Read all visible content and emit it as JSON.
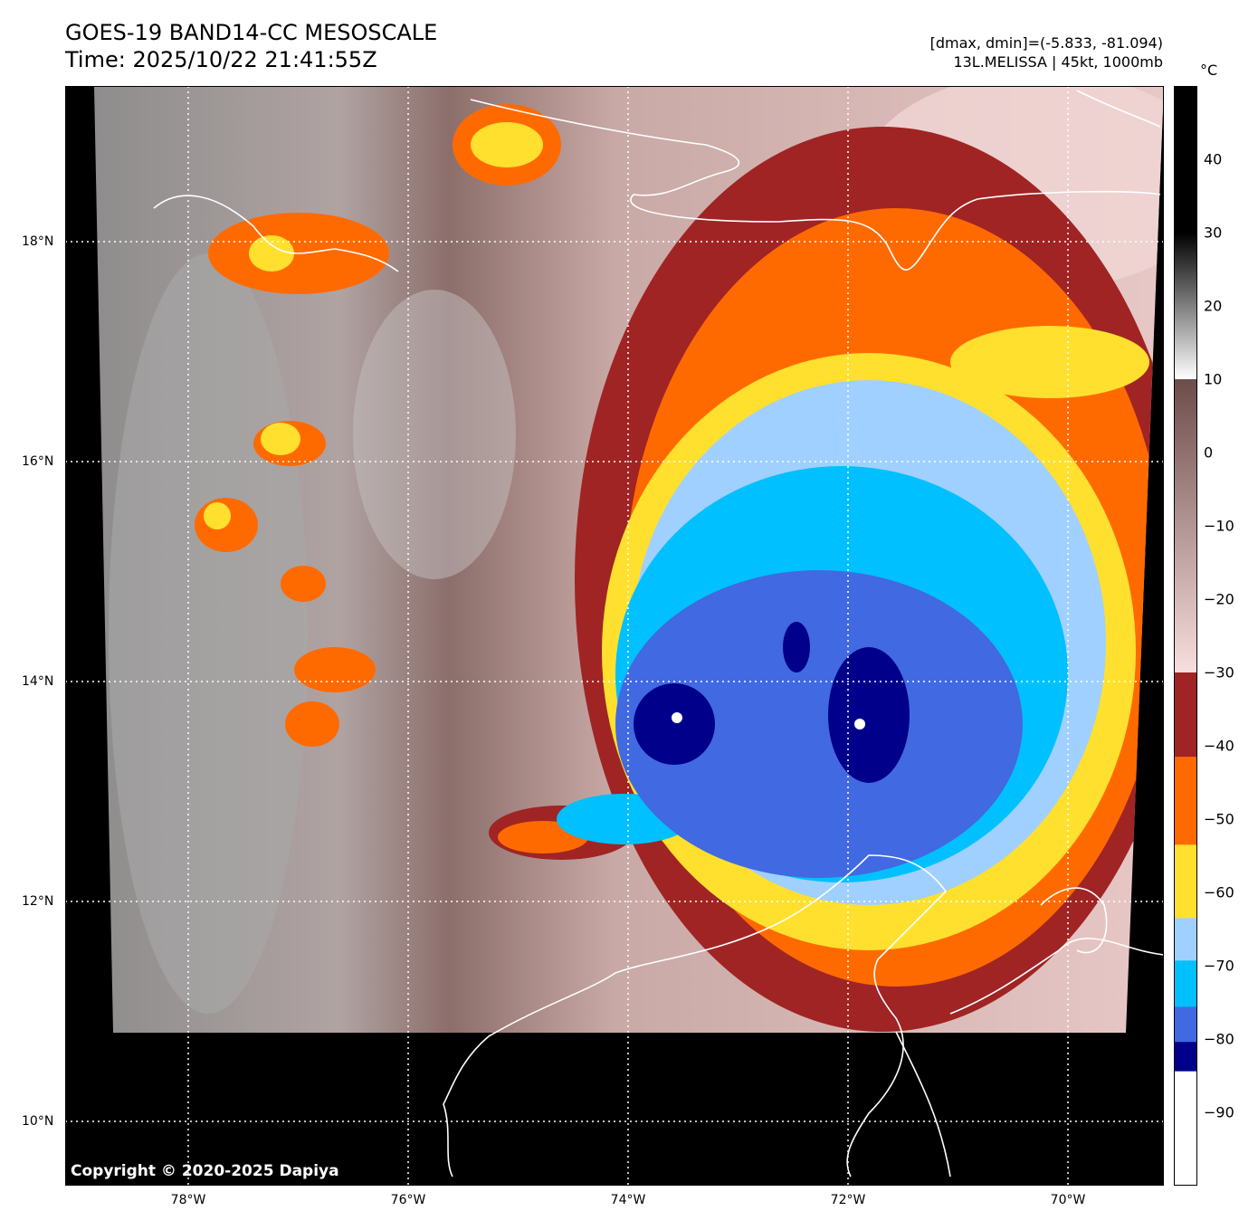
{
  "header": {
    "title": "GOES-19 BAND14-CC MESOSCALE",
    "time": "Time: 2025/10/22 21:41:55Z",
    "stats": "[dmax, dmin]=(-5.833, -81.094)",
    "storm": "13L.MELISSA | 45kt, 1000mb"
  },
  "axes": {
    "lat_ticks": [
      "18°N",
      "16°N",
      "14°N",
      "12°N",
      "10°N"
    ],
    "lon_ticks": [
      "78°W",
      "76°W",
      "74°W",
      "72°W",
      "70°W"
    ]
  },
  "colorbar": {
    "unit": "°C",
    "range": [
      -100,
      50
    ],
    "tick_labels": [
      "40",
      "30",
      "20",
      "10",
      "0",
      "−10",
      "−20",
      "−30",
      "−40",
      "−50",
      "−60",
      "−70",
      "−80",
      "−90"
    ],
    "tick_values": [
      40,
      30,
      20,
      10,
      0,
      -10,
      -20,
      -30,
      -40,
      -50,
      -60,
      -70,
      -80,
      -90
    ],
    "segments": [
      {
        "from": 50,
        "to": 30,
        "c1": "#000000",
        "c2": "#000000"
      },
      {
        "from": 30,
        "to": 10,
        "c1": "#000000",
        "c2": "#ffffff"
      },
      {
        "from": 10,
        "to": -30,
        "c1": "#6b4d4a",
        "c2": "#f8dede"
      },
      {
        "from": -30,
        "to": -41.5,
        "c1": "#a02424",
        "c2": "#a02424"
      },
      {
        "from": -41.5,
        "to": -53.5,
        "c1": "#ff6a00",
        "c2": "#ff6a00"
      },
      {
        "from": -53.5,
        "to": -63.5,
        "c1": "#ffe02e",
        "c2": "#ffe02e"
      },
      {
        "from": -63.5,
        "to": -69.3,
        "c1": "#a0d0ff",
        "c2": "#a0d0ff"
      },
      {
        "from": -69.3,
        "to": -75.6,
        "c1": "#00c0ff",
        "c2": "#00c0ff"
      },
      {
        "from": -75.6,
        "to": -80.4,
        "c1": "#4169e1",
        "c2": "#4169e1"
      },
      {
        "from": -80.4,
        "to": -84.4,
        "c1": "#00008b",
        "c2": "#00008b"
      },
      {
        "from": -84.4,
        "to": -100,
        "c1": "#ffffff",
        "c2": "#ffffff"
      }
    ]
  },
  "copyright": "Copyright © 2020-2025 Dapiya"
}
